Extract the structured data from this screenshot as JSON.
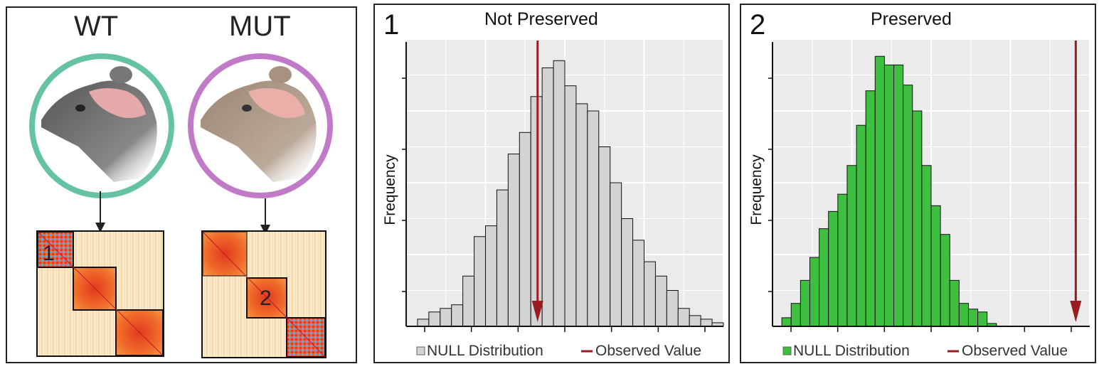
{
  "left_panel": {
    "wt_label": "WT",
    "mut_label": "MUT",
    "wt_color": "#66c2a5",
    "mut_color": "#c07ac8",
    "module_1_label": "1",
    "module_2_label": "2"
  },
  "charts": [
    {
      "panel_number": "1",
      "title": "Not Preserved",
      "ylabel": "Frequency",
      "legend": {
        "null_label": "NULL Distribution",
        "observed_label": "Observed Value"
      },
      "bar_color": "#d3d3d3",
      "observed_color": "#9b1c20"
    },
    {
      "panel_number": "2",
      "title": "Preserved",
      "ylabel": "Frequency",
      "legend": {
        "null_label": "NULL Distribution",
        "observed_label": "Observed Value"
      },
      "bar_color": "#3fbf3f",
      "observed_color": "#9b1c20"
    }
  ],
  "chart_data": [
    {
      "type": "bar",
      "title": "Not Preserved",
      "ylabel": "Frequency",
      "series": [
        {
          "name": "NULL Distribution",
          "values": [
            2,
            4,
            5,
            6,
            14,
            25,
            28,
            38,
            48,
            54,
            64,
            72,
            74,
            67,
            62,
            60,
            50,
            40,
            30,
            24,
            18,
            14,
            10,
            5,
            3,
            2,
            1
          ]
        }
      ],
      "observed_value_bin": 10.6,
      "xlim": [
        -1,
        27
      ],
      "ylim": [
        0,
        80
      ]
    },
    {
      "type": "bar",
      "title": "Preserved",
      "ylabel": "Frequency",
      "series": [
        {
          "name": "NULL Distribution",
          "values": [
            3,
            8,
            16,
            24,
            34,
            40,
            46,
            56,
            70,
            82,
            94,
            91,
            91,
            84,
            75,
            56,
            42,
            32,
            16,
            8,
            6,
            5,
            1
          ]
        }
      ],
      "observed_value_bin": 31.5,
      "xlim": [
        -1,
        33
      ],
      "ylim": [
        0,
        100
      ]
    }
  ]
}
